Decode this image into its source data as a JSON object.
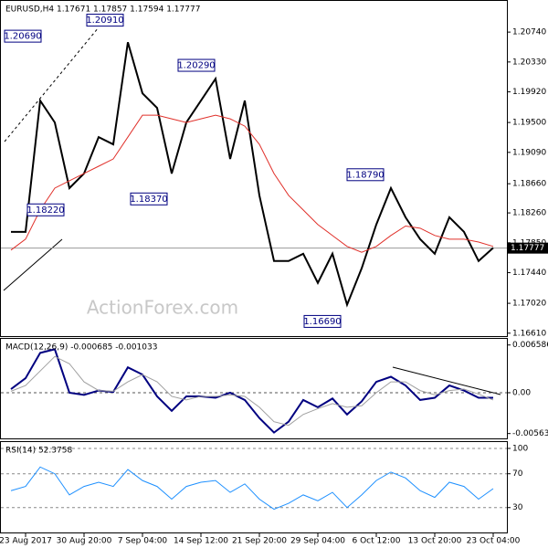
{
  "chart_data": [
    {
      "type": "line",
      "title": "EURUSD,H4  1.17671 1.17857 1.17594 1.17777",
      "watermark": "ActionForex.com",
      "categories": [
        null,
        "23 Aug 2017",
        null,
        null,
        null,
        "30 Aug 20:00",
        null,
        null,
        null,
        "7 Sep 04:00",
        null,
        null,
        null,
        "14 Sep 12:00",
        null,
        null,
        null,
        "21 Sep 20:00",
        null,
        null,
        null,
        "29 Sep 04:00",
        null,
        null,
        null,
        "6 Oct 12:00",
        null,
        null,
        null,
        "13 Oct 20:00",
        null,
        null,
        null,
        "23 Oct 04:00"
      ],
      "series": [
        {
          "color": "#000000",
          "values": [
            1.18,
            1.18,
            1.198,
            1.195,
            1.186,
            1.188,
            1.193,
            1.192,
            1.206,
            1.199,
            1.197,
            1.188,
            1.195,
            1.198,
            1.201,
            1.19,
            1.198,
            1.185,
            1.176,
            1.176,
            1.177,
            1.173,
            1.177,
            1.17,
            1.175,
            1.181,
            1.186,
            1.182,
            1.179,
            1.177,
            1.182,
            1.18,
            1.176,
            1.1778
          ]
        },
        {
          "color": "#e0302a",
          "values": [
            1.1775,
            1.179,
            1.183,
            1.186,
            1.187,
            1.188,
            1.189,
            1.19,
            1.193,
            1.196,
            1.196,
            1.1955,
            1.195,
            1.1955,
            1.196,
            1.1955,
            1.1945,
            1.192,
            1.188,
            1.185,
            1.183,
            1.181,
            1.1795,
            1.178,
            1.1772,
            1.178,
            1.1795,
            1.1808,
            1.1805,
            1.1795,
            1.179,
            1.179,
            1.1786,
            1.178
          ]
        }
      ],
      "last_price": {
        "value": 1.17777,
        "label": "1.17777"
      },
      "annotations": [
        {
          "value": 1.2069,
          "label": "1.20690"
        },
        {
          "value": 1.2091,
          "label": "1.20910"
        },
        {
          "value": 1.2029,
          "label": "1.20290"
        },
        {
          "value": 1.1837,
          "label": "1.18370"
        },
        {
          "value": 1.1822,
          "label": "1.18220"
        },
        {
          "value": 1.1879,
          "label": "1.18790"
        },
        {
          "value": 1.1669,
          "label": "1.16690"
        }
      ],
      "ylim": [
        1.1657,
        1.2118
      ],
      "yticks": [
        {
          "value": 1.2074,
          "label": "1.20740"
        },
        {
          "value": 1.2033,
          "label": "1.20330"
        },
        {
          "value": 1.1992,
          "label": "1.19920"
        },
        {
          "value": 1.195,
          "label": "1.19500"
        },
        {
          "value": 1.1909,
          "label": "1.19090"
        },
        {
          "value": 1.1866,
          "label": "1.18660"
        },
        {
          "value": 1.1826,
          "label": "1.18260"
        },
        {
          "value": 1.1785,
          "label": "1.17850"
        },
        {
          "value": 1.1744,
          "label": "1.17440"
        },
        {
          "value": 1.1702,
          "label": "1.17020"
        },
        {
          "value": 1.1661,
          "label": "1.16610"
        }
      ],
      "grid": false
    },
    {
      "type": "line",
      "title": "MACD(12,26,9) -0.000685 -0.001033",
      "series": [
        {
          "color": "#000080",
          "values": [
            0.0005,
            0.002,
            0.0055,
            0.006,
            0.0,
            -0.0003,
            0.0003,
            0.0001,
            0.0035,
            0.0025,
            -0.0005,
            -0.0025,
            -0.0005,
            -0.0005,
            -0.0007,
            0.0,
            -0.001,
            -0.0035,
            -0.0055,
            -0.004,
            -0.001,
            -0.002,
            -0.0008,
            -0.003,
            -0.0012,
            0.0015,
            0.0022,
            0.001,
            -0.001,
            -0.0007,
            0.001,
            0.0003,
            -0.0007,
            -0.0007
          ]
        },
        {
          "color": "#a0a0a0",
          "values": [
            0.0002,
            0.001,
            0.003,
            0.005,
            0.004,
            0.0015,
            0.0003,
            0.0002,
            0.0015,
            0.0025,
            0.0015,
            -0.0005,
            -0.001,
            -0.0005,
            -0.0005,
            -0.0003,
            -0.0005,
            -0.002,
            -0.004,
            -0.0045,
            -0.003,
            -0.0022,
            -0.0015,
            -0.002,
            -0.0018,
            0.0,
            0.0015,
            0.0015,
            0.0003,
            -0.0003,
            0.0003,
            0.0005,
            -0.0002,
            -0.001
          ]
        }
      ],
      "ylim": [
        -0.00643,
        0.00756
      ],
      "yticks": [
        0.006586,
        {
          "value": 0,
          "label": "0.00"
        },
        -0.005634
      ],
      "grid": false
    },
    {
      "type": "line",
      "title": "RSI(14) 52.3758",
      "series": [
        {
          "color": "#1e90ff",
          "values": [
            50,
            55,
            78,
            70,
            45,
            55,
            60,
            55,
            75,
            62,
            55,
            40,
            55,
            60,
            62,
            48,
            58,
            40,
            28,
            35,
            45,
            38,
            48,
            30,
            45,
            62,
            72,
            65,
            50,
            42,
            60,
            55,
            40,
            52.4
          ]
        }
      ],
      "ylim": [
        0,
        108.6
      ],
      "yticks": [
        100,
        70,
        30
      ],
      "grid": true
    }
  ]
}
